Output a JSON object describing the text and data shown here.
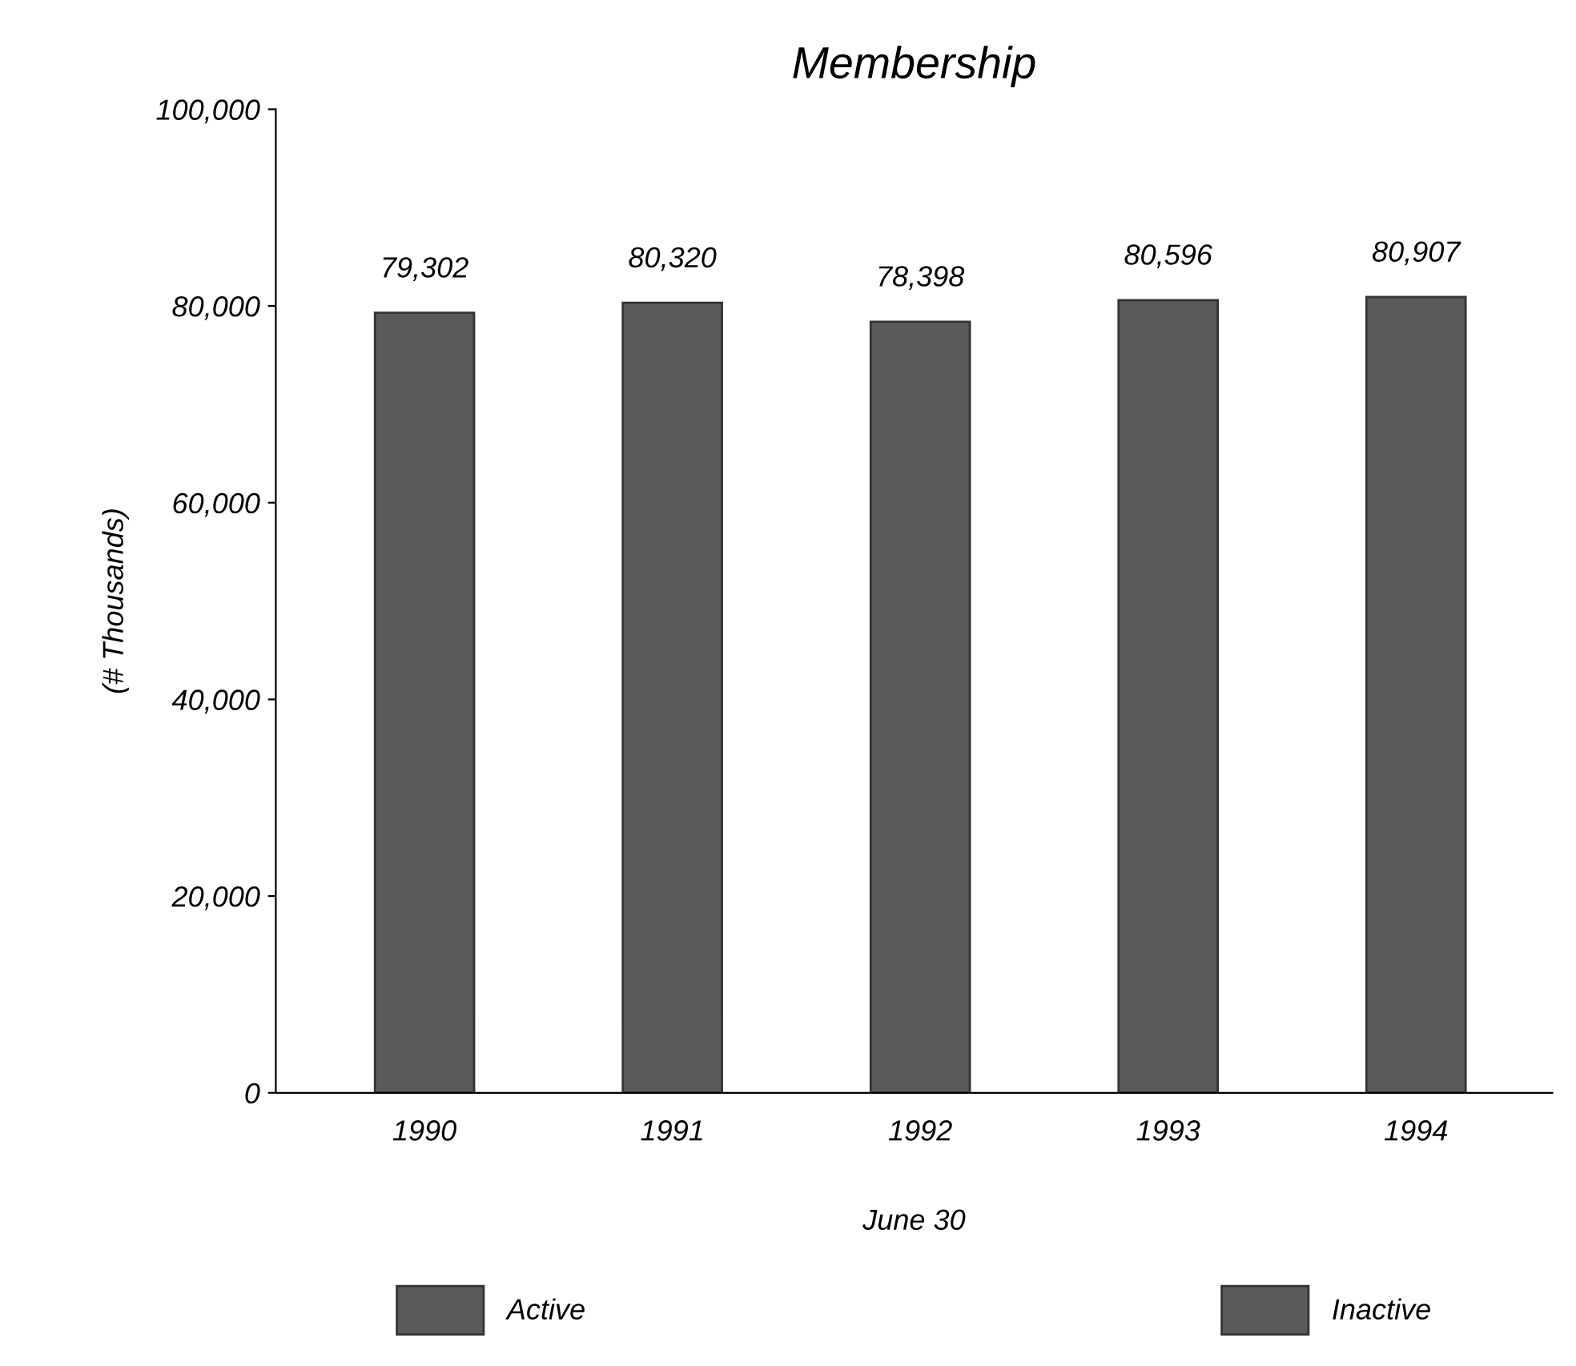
{
  "chart_data": {
    "type": "bar",
    "title": "Membership",
    "xlabel": "June 30",
    "ylabel": "(# Thousands)",
    "categories": [
      "1990",
      "1991",
      "1992",
      "1993",
      "1994"
    ],
    "stacked": true,
    "series": [
      {
        "name": "Active",
        "color": "#5a5a5a",
        "values": [
          79302,
          80320,
          78398,
          80596,
          80907
        ]
      },
      {
        "name": "Inactive",
        "color": "#5a5a5a",
        "values": [
          null,
          null,
          null,
          null,
          null
        ]
      }
    ],
    "value_labels": [
      "79,302",
      "80,320",
      "78,398",
      "80,596",
      "80,907"
    ],
    "ylim": [
      0,
      100000
    ],
    "yticks": [
      {
        "value": 0,
        "label": "0"
      },
      {
        "value": 20000,
        "label": "20,000"
      },
      {
        "value": 40000,
        "label": "40,000"
      },
      {
        "value": 60000,
        "label": "60,000"
      },
      {
        "value": 80000,
        "label": "80,000"
      },
      {
        "value": 100000,
        "label": "100,000"
      }
    ],
    "legend": "bottom",
    "grid": false
  }
}
